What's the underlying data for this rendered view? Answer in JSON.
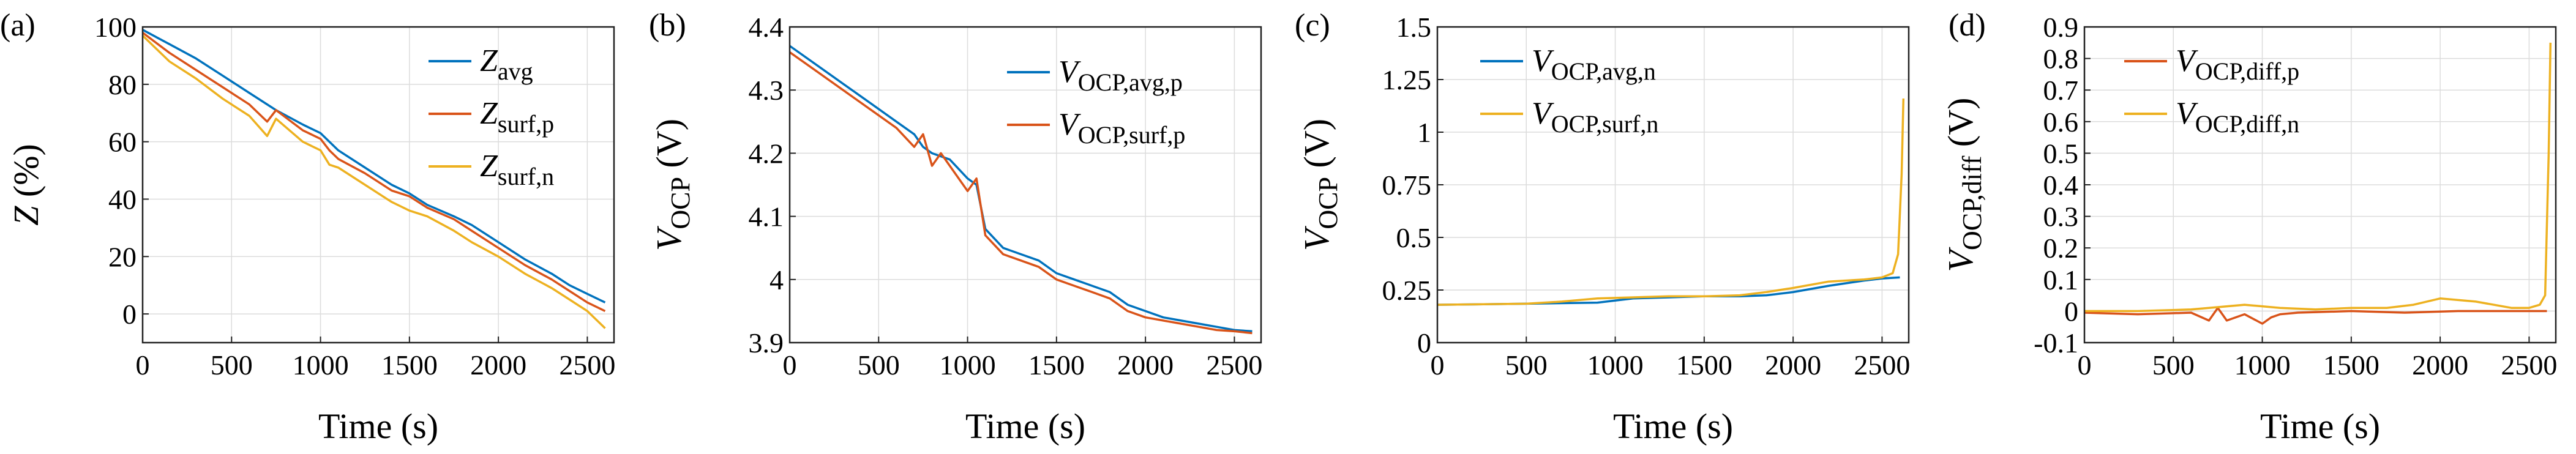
{
  "chart_data": [
    {
      "panel": "(a)",
      "type": "line",
      "xlabel": "Time (s)",
      "ylabel": "Z (%)",
      "ylabel_parts": {
        "main": "Z",
        "sub": "",
        "rest": " (%)"
      },
      "xlim": [
        0,
        2650
      ],
      "ylim": [
        -10,
        100
      ],
      "xticks": [
        0,
        500,
        1000,
        1500,
        2000,
        2500
      ],
      "yticks": [
        0,
        20,
        40,
        60,
        80,
        100
      ],
      "ytick_labels": [
        "0",
        "20",
        "40",
        "60",
        "80",
        "100"
      ],
      "grid": true,
      "legend_position": "top-right",
      "series": [
        {
          "name": "Zavg",
          "label_main": "Z",
          "label_sub": "avg",
          "color": "#0072BD",
          "x": [
            0,
            150,
            300,
            450,
            600,
            750,
            900,
            1000,
            1100,
            1250,
            1400,
            1500,
            1600,
            1750,
            1850,
            2000,
            2150,
            2300,
            2400,
            2500,
            2600
          ],
          "y": [
            99,
            94,
            89,
            83,
            77,
            71,
            66,
            63,
            57,
            51,
            45,
            42,
            38,
            34,
            31,
            25,
            19,
            14,
            10,
            7,
            4
          ]
        },
        {
          "name": "Zsurf,p",
          "label_main": "Z",
          "label_sub": "surf,p",
          "color": "#D95319",
          "x": [
            0,
            150,
            300,
            450,
            600,
            700,
            750,
            900,
            1000,
            1050,
            1100,
            1250,
            1400,
            1500,
            1600,
            1750,
            1850,
            2000,
            2150,
            2300,
            2400,
            2500,
            2600
          ],
          "y": [
            98,
            91,
            85,
            79,
            73,
            67,
            71,
            64,
            61,
            57,
            54,
            49,
            43,
            41,
            37,
            33,
            29,
            23,
            17,
            12,
            8,
            4,
            1
          ]
        },
        {
          "name": "Zsurf,n",
          "label_main": "Z",
          "label_sub": "surf,n",
          "color": "#EDB120",
          "x": [
            0,
            150,
            300,
            450,
            600,
            700,
            750,
            900,
            1000,
            1050,
            1100,
            1250,
            1400,
            1500,
            1600,
            1750,
            1850,
            2000,
            2150,
            2300,
            2400,
            2500,
            2600
          ],
          "y": [
            97,
            88,
            82,
            75,
            69,
            62,
            68,
            60,
            57,
            52,
            51,
            45,
            39,
            36,
            34,
            29,
            25,
            20,
            14,
            9,
            5,
            1,
            -5
          ]
        }
      ]
    },
    {
      "panel": "(b)",
      "type": "line",
      "xlabel": "Time (s)",
      "ylabel": "VOCP (V)",
      "ylabel_parts": {
        "main": "V",
        "sub": "OCP",
        "rest": " (V)"
      },
      "xlim": [
        0,
        2650
      ],
      "ylim": [
        3.9,
        4.4
      ],
      "xticks": [
        0,
        500,
        1000,
        1500,
        2000,
        2500
      ],
      "yticks": [
        3.9,
        4.0,
        4.1,
        4.2,
        4.3,
        4.4
      ],
      "ytick_labels": [
        "3.9",
        "4",
        "4.1",
        "4.2",
        "4.3",
        "4.4"
      ],
      "grid": true,
      "legend_position": "top-right",
      "series": [
        {
          "name": "VOCP,avg,p",
          "label_main": "V",
          "label_sub": "OCP,avg,p",
          "color": "#0072BD",
          "x": [
            0,
            150,
            300,
            450,
            600,
            700,
            750,
            800,
            900,
            1000,
            1050,
            1100,
            1200,
            1300,
            1400,
            1500,
            1600,
            1700,
            1800,
            1900,
            2000,
            2100,
            2200,
            2300,
            2400,
            2500,
            2600
          ],
          "y": [
            4.37,
            4.34,
            4.31,
            4.28,
            4.25,
            4.23,
            4.21,
            4.2,
            4.19,
            4.16,
            4.15,
            4.08,
            4.05,
            4.04,
            4.03,
            4.01,
            4.0,
            3.99,
            3.98,
            3.96,
            3.95,
            3.94,
            3.935,
            3.93,
            3.925,
            3.92,
            3.918
          ]
        },
        {
          "name": "VOCP,surf,p",
          "label_main": "V",
          "label_sub": "OCP,surf,p",
          "color": "#D95319",
          "x": [
            0,
            150,
            300,
            450,
            600,
            700,
            750,
            800,
            850,
            900,
            1000,
            1050,
            1100,
            1200,
            1300,
            1400,
            1500,
            1600,
            1700,
            1800,
            1900,
            2000,
            2100,
            2200,
            2300,
            2400,
            2500,
            2600
          ],
          "y": [
            4.36,
            4.33,
            4.3,
            4.27,
            4.24,
            4.21,
            4.23,
            4.18,
            4.2,
            4.18,
            4.14,
            4.16,
            4.07,
            4.04,
            4.03,
            4.02,
            4.0,
            3.99,
            3.98,
            3.97,
            3.95,
            3.94,
            3.935,
            3.93,
            3.925,
            3.92,
            3.918,
            3.915
          ]
        }
      ]
    },
    {
      "panel": "(c)",
      "type": "line",
      "xlabel": "Time (s)",
      "ylabel": "VOCP (V)",
      "ylabel_parts": {
        "main": "V",
        "sub": "OCP",
        "rest": " (V)"
      },
      "xlim": [
        0,
        2650
      ],
      "ylim": [
        0,
        1.5
      ],
      "xticks": [
        0,
        500,
        1000,
        1500,
        2000,
        2500
      ],
      "yticks": [
        0,
        0.25,
        0.5,
        0.75,
        1.0,
        1.25,
        1.5
      ],
      "ytick_labels": [
        "0",
        "0.25",
        "0.5",
        "0.75",
        "1",
        "1.25",
        "1.5"
      ],
      "grid": true,
      "legend_position": "top-left",
      "series": [
        {
          "name": "VOCP,avg,n",
          "label_main": "V",
          "label_sub": "OCP,avg,n",
          "color": "#0072BD",
          "x": [
            0,
            500,
            900,
            1100,
            1300,
            1500,
            1700,
            1850,
            2000,
            2200,
            2400,
            2500,
            2600
          ],
          "y": [
            0.18,
            0.185,
            0.19,
            0.21,
            0.215,
            0.22,
            0.22,
            0.225,
            0.24,
            0.27,
            0.295,
            0.305,
            0.31
          ]
        },
        {
          "name": "VOCP,surf,n",
          "label_main": "V",
          "label_sub": "OCP,surf,n",
          "color": "#EDB120",
          "x": [
            0,
            500,
            700,
            900,
            1100,
            1300,
            1500,
            1700,
            1850,
            2000,
            2200,
            2400,
            2500,
            2560,
            2590,
            2610,
            2620
          ],
          "y": [
            0.18,
            0.185,
            0.195,
            0.21,
            0.215,
            0.22,
            0.22,
            0.225,
            0.24,
            0.26,
            0.29,
            0.3,
            0.31,
            0.33,
            0.42,
            0.8,
            1.16
          ]
        }
      ]
    },
    {
      "panel": "(d)",
      "type": "line",
      "xlabel": "Time (s)",
      "ylabel": "VOCP,diff (V)",
      "ylabel_parts": {
        "main": "V",
        "sub": "OCP,diff",
        "rest": " (V)"
      },
      "xlim": [
        0,
        2650
      ],
      "ylim": [
        -0.1,
        0.9
      ],
      "xticks": [
        0,
        500,
        1000,
        1500,
        2000,
        2500
      ],
      "yticks": [
        -0.1,
        0,
        0.1,
        0.2,
        0.3,
        0.4,
        0.5,
        0.6,
        0.7,
        0.8,
        0.9
      ],
      "ytick_labels": [
        "-0.1",
        "0",
        "0.1",
        "0.2",
        "0.3",
        "0.4",
        "0.5",
        "0.6",
        "0.7",
        "0.8",
        "0.9"
      ],
      "grid": true,
      "legend_position": "top-left",
      "series": [
        {
          "name": "VOCP,diff,p",
          "label_main": "V",
          "label_sub": "OCP,diff,p",
          "color": "#D95319",
          "x": [
            0,
            300,
            600,
            700,
            750,
            800,
            900,
            1000,
            1050,
            1100,
            1200,
            1500,
            1800,
            2100,
            2400,
            2600
          ],
          "y": [
            -0.005,
            -0.01,
            -0.005,
            -0.03,
            0.01,
            -0.03,
            -0.01,
            -0.04,
            -0.02,
            -0.01,
            -0.005,
            0.0,
            -0.005,
            0.0,
            0.0,
            0.0
          ]
        },
        {
          "name": "VOCP,diff,n",
          "label_main": "V",
          "label_sub": "OCP,diff,n",
          "color": "#EDB120",
          "x": [
            0,
            300,
            600,
            700,
            900,
            1100,
            1300,
            1500,
            1700,
            1850,
            2000,
            2200,
            2400,
            2500,
            2560,
            2590,
            2610,
            2620
          ],
          "y": [
            0.0,
            0.0,
            0.005,
            0.01,
            0.02,
            0.01,
            0.005,
            0.01,
            0.01,
            0.02,
            0.04,
            0.03,
            0.01,
            0.01,
            0.02,
            0.05,
            0.5,
            0.85
          ]
        }
      ]
    }
  ]
}
